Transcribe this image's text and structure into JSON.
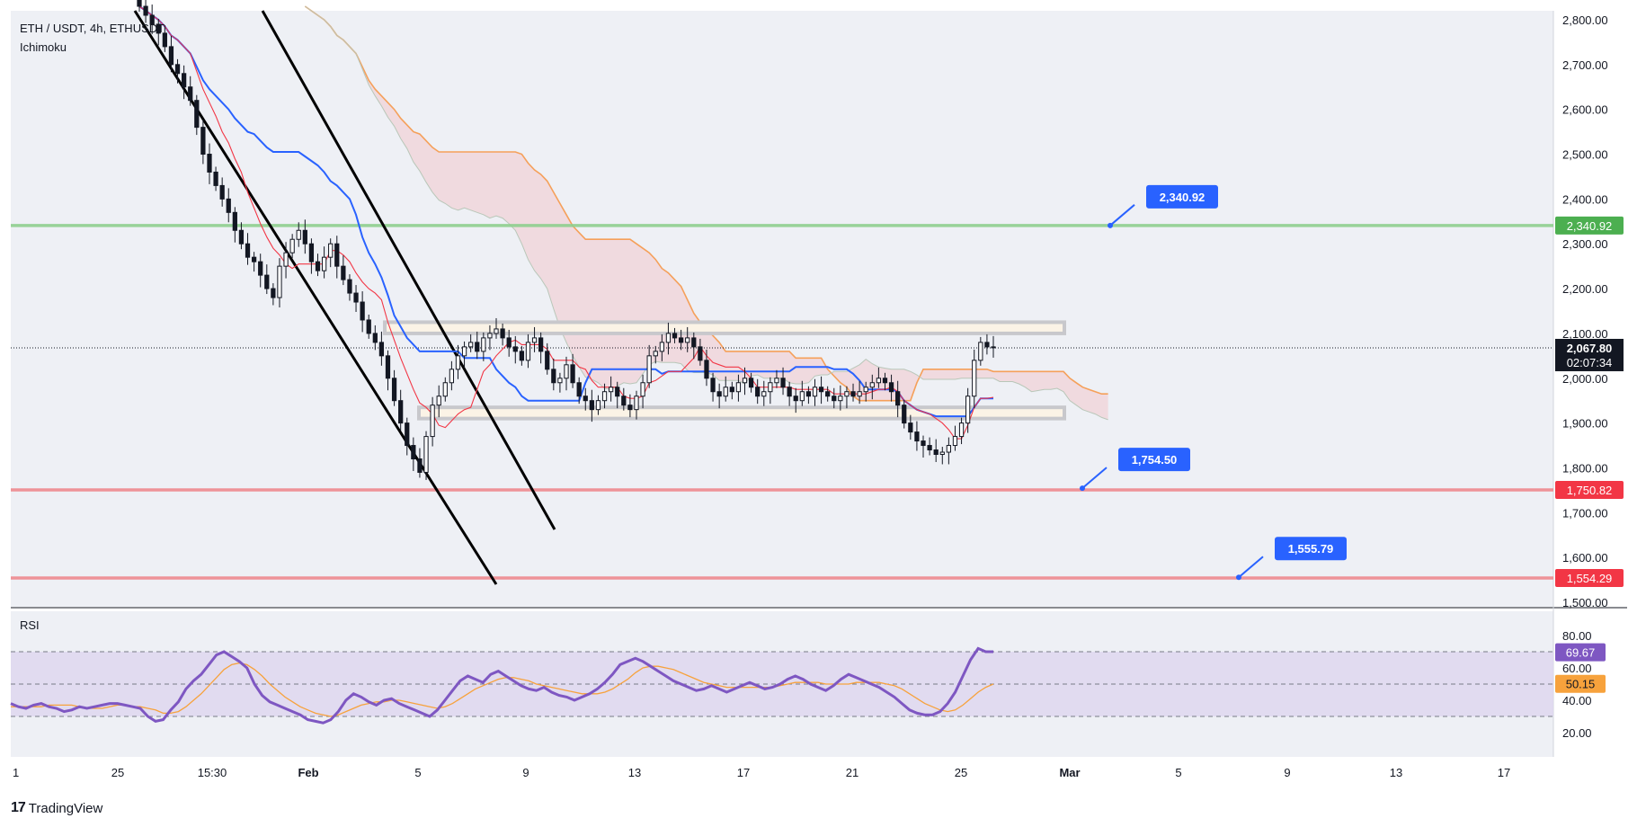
{
  "header": {
    "symbol_line": "ETH / USDT, 4h, ETHUSDT",
    "indicator": "Ichimoku"
  },
  "rsi_panel": {
    "label": "RSI"
  },
  "footer": {
    "brand": "TradingView"
  },
  "colors": {
    "background": "#ffffff",
    "plot_bg": "#eef0f5",
    "resistance_line": "#8fcf8f",
    "support_line": "#ee8a8f",
    "price_badge_green": "#4caf50",
    "price_badge_red": "#f23645",
    "callout_blue": "#2962ff",
    "kijun": "#2962ff",
    "tenkan": "#f23645",
    "span_b": "#f5a05a",
    "cloud_fill": "#f3c9cc",
    "rsi_line": "#7e57c2",
    "rsi_ma": "#f7a23c",
    "rsi_band": "#ddd6ef"
  },
  "chart_data": {
    "type": "candlestick",
    "title": "ETH / USDT, 4h, ETHUSDT",
    "price_axis": {
      "ticks": [
        "2,800.00",
        "2,700.00",
        "2,600.00",
        "2,500.00",
        "2,400.00",
        "2,300.00",
        "2,200.00",
        "2,100.00",
        "2,000.00",
        "1,900.00",
        "1,800.00",
        "1,700.00",
        "1,600.00",
        "1,500.00"
      ],
      "tick_values": [
        2800,
        2700,
        2600,
        2500,
        2400,
        2300,
        2200,
        2100,
        2000,
        1900,
        1800,
        1700,
        1600,
        1500
      ],
      "range": [
        1490,
        2820
      ]
    },
    "time_axis": {
      "labels": [
        "1",
        "25",
        "15:30",
        "Feb",
        "5",
        "9",
        "13",
        "17",
        "21",
        "25",
        "Mar",
        "5",
        "9",
        "13",
        "17"
      ],
      "bold": [
        "Feb",
        "Mar"
      ]
    },
    "current_price": {
      "value": 2067.8,
      "label": "2,067.80",
      "countdown": "02:07:34"
    },
    "horizontal_levels": [
      {
        "name": "resistance",
        "value": 2340.92,
        "label": "2,340.92",
        "color": "green"
      },
      {
        "name": "support-1",
        "value": 1750.82,
        "label": "1,750.82",
        "color": "red"
      },
      {
        "name": "support-2",
        "value": 1554.29,
        "label": "1,554.29",
        "color": "red"
      }
    ],
    "callouts": [
      {
        "label": "2,340.92",
        "value": 2340.92
      },
      {
        "label": "1,754.50",
        "value": 1754.5
      },
      {
        "label": "1,555.79",
        "value": 1555.79
      }
    ],
    "zones": [
      {
        "name": "upper-range",
        "from": 2100,
        "to": 2125
      },
      {
        "name": "lower-range",
        "from": 1910,
        "to": 1935
      }
    ],
    "candles_close": [
      2830,
      2810,
      2790,
      2770,
      2740,
      2700,
      2680,
      2650,
      2620,
      2560,
      2500,
      2460,
      2430,
      2400,
      2370,
      2330,
      2300,
      2270,
      2260,
      2230,
      2200,
      2180,
      2250,
      2280,
      2310,
      2330,
      2300,
      2260,
      2240,
      2270,
      2300,
      2250,
      2220,
      2190,
      2170,
      2130,
      2100,
      2080,
      2050,
      2000,
      1950,
      1900,
      1850,
      1820,
      1790,
      1870,
      1940,
      1960,
      1990,
      2020,
      2050,
      2070,
      2080,
      2060,
      2090,
      2100,
      2110,
      2090,
      2070,
      2060,
      2040,
      2080,
      2090,
      2060,
      2020,
      1990,
      2000,
      2030,
      1990,
      1960,
      1950,
      1930,
      1950,
      1970,
      1980,
      1960,
      1940,
      1930,
      1960,
      1990,
      2050,
      2060,
      2080,
      2100,
      2090,
      2080,
      2090,
      2070,
      2040,
      2000,
      1970,
      1960,
      1980,
      1970,
      1990,
      2000,
      1980,
      1960,
      1970,
      1990,
      2000,
      1980,
      1960,
      1950,
      1970,
      1960,
      1980,
      1970,
      1960,
      1950,
      1960,
      1970,
      1960,
      1970,
      1980,
      1990,
      2000,
      1990,
      1970,
      1940,
      1900,
      1880,
      1860,
      1850,
      1840,
      1830,
      1835,
      1850,
      1870,
      1900,
      1960,
      2040,
      2080,
      2070,
      2068
    ],
    "series_rsi": [
      38,
      36,
      35,
      37,
      38,
      36,
      35,
      33,
      34,
      36,
      35,
      36,
      37,
      38,
      38,
      37,
      36,
      35,
      30,
      27,
      28,
      34,
      39,
      47,
      52,
      56,
      62,
      68,
      70,
      67,
      64,
      60,
      50,
      43,
      39,
      37,
      35,
      33,
      31,
      28,
      27,
      26,
      28,
      33,
      40,
      44,
      42,
      39,
      37,
      40,
      41,
      38,
      36,
      34,
      32,
      30,
      34,
      40,
      46,
      52,
      55,
      53,
      51,
      56,
      58,
      55,
      52,
      49,
      47,
      46,
      48,
      45,
      43,
      42,
      40,
      42,
      44,
      47,
      51,
      56,
      62,
      64,
      66,
      64,
      61,
      58,
      55,
      52,
      50,
      48,
      46,
      47,
      49,
      47,
      45,
      47,
      49,
      51,
      49,
      47,
      48,
      50,
      53,
      55,
      53,
      50,
      48,
      46,
      49,
      53,
      56,
      54,
      52,
      50,
      48,
      45,
      42,
      38,
      34,
      32,
      31,
      31,
      33,
      38,
      45,
      55,
      65,
      72,
      70,
      70
    ],
    "series_rsi_ma": [
      36,
      36,
      36,
      36,
      36,
      37,
      37,
      37,
      37,
      36,
      35,
      35,
      35,
      36,
      37,
      37,
      36,
      36,
      35,
      34,
      32,
      32,
      33,
      36,
      40,
      44,
      49,
      54,
      59,
      62,
      63,
      62,
      59,
      55,
      50,
      46,
      42,
      39,
      36,
      34,
      32,
      31,
      30,
      31,
      33,
      35,
      37,
      38,
      39,
      39,
      40,
      40,
      39,
      38,
      37,
      36,
      35,
      36,
      38,
      41,
      44,
      47,
      49,
      51,
      53,
      54,
      54,
      53,
      52,
      50,
      49,
      48,
      47,
      46,
      45,
      44,
      44,
      44,
      45,
      47,
      50,
      53,
      57,
      60,
      61,
      61,
      60,
      59,
      57,
      55,
      53,
      51,
      50,
      49,
      48,
      48,
      48,
      48,
      48,
      48,
      48,
      49,
      50,
      51,
      51,
      51,
      51,
      50,
      50,
      50,
      50,
      51,
      51,
      51,
      51,
      50,
      49,
      47,
      44,
      41,
      38,
      36,
      34,
      33,
      34,
      37,
      41,
      45,
      48,
      50
    ],
    "rsi_axis": {
      "ticks": [
        "80.00",
        "60.00",
        "40.00",
        "20.00"
      ],
      "tick_values": [
        80,
        60,
        40,
        20
      ],
      "upper_band": 70,
      "lower_band": 30,
      "current": "69.67",
      "ma_current": "50.15",
      "current_value": 69.67,
      "ma_current_value": 50.15
    },
    "grid": false,
    "legend": "top-left"
  }
}
